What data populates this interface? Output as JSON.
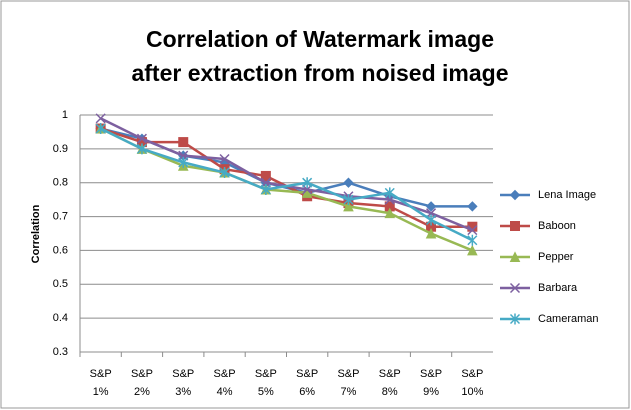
{
  "chart_data": {
    "type": "line",
    "title": "Correlation of Watermark image after extraction from noised image",
    "y_label": "Correlation",
    "categories": [
      "S&P 1%",
      "S&P 2%",
      "S&P 3%",
      "S&P 4%",
      "S&P 5%",
      "S&P 6%",
      "S&P 7%",
      "S&P 8%",
      "S&P 9%",
      "S&P 10%"
    ],
    "series": [
      {
        "name": "Lena Image",
        "color": "#4a7ebb",
        "marker": "diamond",
        "values": [
          0.96,
          0.93,
          0.88,
          0.86,
          0.8,
          0.77,
          0.8,
          0.76,
          0.73,
          0.73
        ]
      },
      {
        "name": "Baboon",
        "color": "#be4b48",
        "marker": "square",
        "values": [
          0.96,
          0.92,
          0.92,
          0.84,
          0.82,
          0.76,
          0.74,
          0.73,
          0.67,
          0.67
        ]
      },
      {
        "name": "Pepper",
        "color": "#98b954",
        "marker": "triangle",
        "values": [
          0.96,
          0.9,
          0.85,
          0.83,
          0.78,
          0.77,
          0.73,
          0.71,
          0.65,
          0.6
        ]
      },
      {
        "name": "Barbara",
        "color": "#7d60a0",
        "marker": "x",
        "values": [
          0.99,
          0.93,
          0.88,
          0.87,
          0.8,
          0.78,
          0.76,
          0.75,
          0.71,
          0.66
        ]
      },
      {
        "name": "Cameraman",
        "color": "#46aac5",
        "marker": "star",
        "values": [
          0.96,
          0.9,
          0.86,
          0.83,
          0.78,
          0.8,
          0.75,
          0.77,
          0.69,
          0.63
        ]
      }
    ],
    "ylim": [
      0.3,
      1
    ],
    "yticks": [
      0.3,
      0.4,
      0.5,
      0.6,
      0.7,
      0.8,
      0.9,
      1
    ],
    "grid": true,
    "legend": "right"
  }
}
